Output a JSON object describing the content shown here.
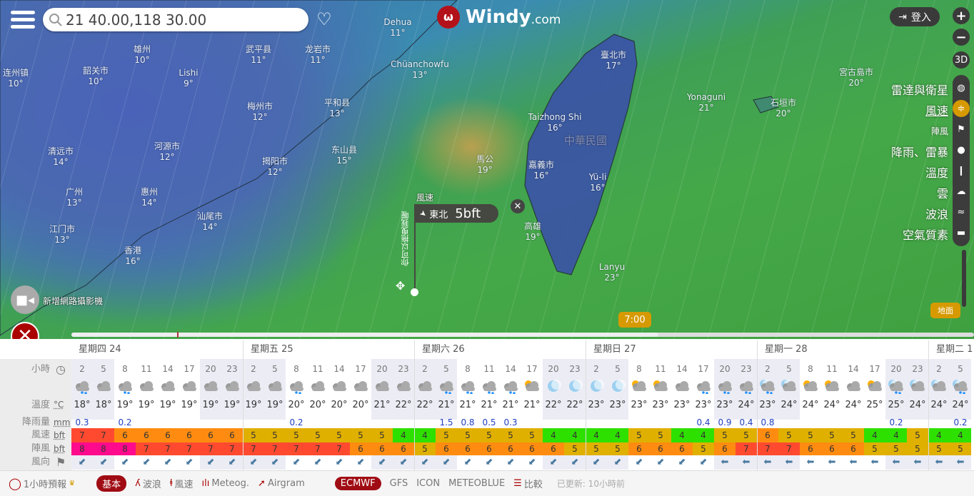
{
  "app": {
    "logo_text": "Windy",
    "logo_suffix": ".com",
    "brand_color": "#b3121b"
  },
  "search": {
    "value": "21 40.00,118 30.00"
  },
  "login_label": "登入",
  "zoom": {
    "plus": "+",
    "minus": "−",
    "three_d": "3D"
  },
  "layers": [
    {
      "label": "雷達與衛星",
      "icon": "globe-icon",
      "glyph": "◍"
    },
    {
      "label": "風速",
      "icon": "wind-icon",
      "glyph": "≑",
      "active": true
    },
    {
      "label": "陣風",
      "icon": "flag-icon",
      "glyph": "⚑"
    },
    {
      "label": "降雨、雷暴",
      "icon": "drop-icon",
      "glyph": "●"
    },
    {
      "label": "溫度",
      "icon": "thermometer-icon",
      "glyph": "❙"
    },
    {
      "label": "雲",
      "icon": "cloud-icon",
      "glyph": "☁"
    },
    {
      "label": "波浪",
      "icon": "waves-icon",
      "glyph": "≈"
    },
    {
      "label": "空氣質素",
      "icon": "car-icon",
      "glyph": "▬"
    }
  ],
  "cities": [
    {
      "name": "连州镇",
      "temp": "10°"
    },
    {
      "name": "韶关市",
      "temp": "10°"
    },
    {
      "name": "雄州",
      "temp": "10°"
    },
    {
      "name": "Lishi",
      "temp": "9°"
    },
    {
      "name": "武平县",
      "temp": "11°"
    },
    {
      "name": "龙岩市",
      "temp": "11°"
    },
    {
      "name": "梅州市",
      "temp": "12°"
    },
    {
      "name": "平和县",
      "temp": "13°"
    },
    {
      "name": "清远市",
      "temp": "14°"
    },
    {
      "name": "河源市",
      "temp": "12°"
    },
    {
      "name": "揭阳市",
      "temp": "12°"
    },
    {
      "name": "东山县",
      "temp": "15°"
    },
    {
      "name": "广州",
      "temp": "13°"
    },
    {
      "name": "惠州",
      "temp": "14°"
    },
    {
      "name": "汕尾市",
      "temp": "14°"
    },
    {
      "name": "江门市",
      "temp": "13°"
    },
    {
      "name": "香港",
      "temp": "16°"
    },
    {
      "name": "Dehua",
      "temp": "11°"
    },
    {
      "name": "Chüanchowfu",
      "temp": "13°"
    },
    {
      "name": "馬公",
      "temp": "19°"
    },
    {
      "name": "臺北市",
      "temp": "17°"
    },
    {
      "name": "Taizhong Shi",
      "temp": "16°"
    },
    {
      "name": "嘉義市",
      "temp": "16°"
    },
    {
      "name": "Yü-li",
      "temp": "16°"
    },
    {
      "name": "高雄",
      "temp": "19°"
    },
    {
      "name": "Lanyu",
      "temp": "23°"
    },
    {
      "name": "Yonaguni",
      "temp": "21°"
    },
    {
      "name": "石垣市",
      "temp": "20°"
    },
    {
      "name": "宮古島市",
      "temp": "20°"
    }
  ],
  "country_label": "中華民國",
  "picker": {
    "title": "風速",
    "direction": "東北",
    "value": "5bft",
    "hint": "你可以拖曳我喔"
  },
  "webcam_label": "新增網路攝影機",
  "timeline": {
    "time": "7:00",
    "progress_percent": 65
  },
  "ground_label": "地面",
  "table": {
    "labels": {
      "hours": "小時",
      "temp": "溫度",
      "temp_unit": "°C",
      "rain": "降雨量",
      "rain_unit": "mm",
      "wind": "風速",
      "wind_unit": "bft",
      "gust": "陣風",
      "gust_unit": "bft",
      "dir": "風向"
    },
    "days": [
      {
        "label": "星期四 24",
        "hours": [
          "2",
          "5",
          "8",
          "11",
          "14",
          "17",
          "20",
          "23"
        ],
        "icons": [
          "cloud-rain",
          "cloud",
          "cloud-rain",
          "cloud",
          "cloud",
          "cloud",
          "cloud",
          "cloud"
        ],
        "temps": [
          "18°",
          "18°",
          "19°",
          "19°",
          "19°",
          "19°",
          "19°",
          "19°"
        ],
        "rain": [
          "0.3",
          "",
          "0.2",
          "",
          "",
          "",
          "",
          ""
        ],
        "wind": [
          7,
          7,
          6,
          6,
          6,
          6,
          6,
          6
        ],
        "gust": [
          8,
          8,
          8,
          7,
          7,
          7,
          7,
          7
        ],
        "dir": [
          "NE",
          "NE",
          "NE",
          "NE",
          "NE",
          "NE",
          "NE",
          "NE"
        ]
      },
      {
        "label": "星期五 25",
        "hours": [
          "2",
          "5",
          "8",
          "11",
          "14",
          "17",
          "20",
          "23"
        ],
        "icons": [
          "cloud",
          "cloud",
          "cloud-rain",
          "cloud",
          "cloud",
          "cloud",
          "cloud",
          "cloud"
        ],
        "temps": [
          "19°",
          "19°",
          "20°",
          "20°",
          "20°",
          "20°",
          "21°",
          "22°"
        ],
        "rain": [
          "",
          "",
          "0.2",
          "",
          "",
          "",
          "",
          ""
        ],
        "wind": [
          5,
          5,
          5,
          5,
          5,
          5,
          5,
          4
        ],
        "gust": [
          7,
          7,
          7,
          7,
          7,
          6,
          6,
          6
        ],
        "dir": [
          "NE",
          "NE",
          "NE",
          "NE",
          "NE",
          "NE",
          "NE",
          "NE"
        ]
      },
      {
        "label": "星期六 26",
        "hours": [
          "2",
          "5",
          "8",
          "11",
          "14",
          "17",
          "20",
          "23"
        ],
        "icons": [
          "cloud",
          "cloud-rain",
          "cloud-rain",
          "cloud-rain",
          "cloud-rain",
          "sun-cloud",
          "moon",
          "moon"
        ],
        "temps": [
          "22°",
          "21°",
          "21°",
          "21°",
          "21°",
          "21°",
          "22°",
          "22°"
        ],
        "rain": [
          "",
          "1.5",
          "0.8",
          "0.5",
          "0.3",
          "",
          "",
          ""
        ],
        "wind": [
          4,
          5,
          5,
          5,
          5,
          5,
          4,
          4
        ],
        "gust": [
          5,
          6,
          6,
          6,
          6,
          6,
          6,
          5
        ],
        "dir": [
          "NE",
          "NE",
          "NE",
          "NE",
          "NE",
          "NE",
          "NE",
          "NE"
        ]
      },
      {
        "label": "星期日 27",
        "hours": [
          "2",
          "5",
          "8",
          "11",
          "14",
          "17",
          "20",
          "23"
        ],
        "icons": [
          "moon",
          "moon",
          "sun-cloud",
          "sun-cloud",
          "cloud",
          "cloud-rain",
          "cloud-rain",
          "cloud-rain"
        ],
        "temps": [
          "23°",
          "23°",
          "23°",
          "23°",
          "23°",
          "23°",
          "23°",
          "24°"
        ],
        "rain": [
          "",
          "",
          "",
          "",
          "",
          "0.4",
          "0.9",
          "0.4"
        ],
        "wind": [
          4,
          4,
          5,
          5,
          4,
          4,
          5,
          5
        ],
        "gust": [
          5,
          5,
          6,
          6,
          6,
          5,
          6,
          7
        ],
        "dir": [
          "NE",
          "NE",
          "NE",
          "NE",
          "NE",
          "NE",
          "E",
          "E"
        ]
      },
      {
        "label": "星期一 28",
        "hours": [
          "2",
          "5",
          "8",
          "11",
          "14",
          "17",
          "20",
          "23"
        ],
        "icons": [
          "moon-cloud-rain",
          "moon-cloud",
          "sun-cloud",
          "sun-cloud",
          "cloud",
          "sun-cloud",
          "moon-cloud-rain",
          "moon-cloud"
        ],
        "temps": [
          "23°",
          "24°",
          "24°",
          "24°",
          "24°",
          "25°",
          "25°",
          "24°"
        ],
        "rain": [
          "0.8",
          "",
          "",
          "",
          "",
          "",
          "0.2",
          ""
        ],
        "wind": [
          6,
          5,
          5,
          5,
          5,
          4,
          4,
          5
        ],
        "gust": [
          7,
          7,
          6,
          6,
          6,
          5,
          5,
          5
        ],
        "dir": [
          "E",
          "E",
          "E",
          "E",
          "E",
          "E",
          "E",
          "E"
        ]
      },
      {
        "label": "星期二 1",
        "hours": [
          "2",
          "5"
        ],
        "icons": [
          "moon-cloud",
          "moon-cloud-rain"
        ],
        "temps": [
          "24°",
          "24°"
        ],
        "rain": [
          "",
          "0.2"
        ],
        "wind": [
          4,
          4
        ],
        "gust": [
          5,
          5
        ],
        "dir": [
          "E",
          "E"
        ]
      }
    ],
    "bft_colors": {
      "4": "#2ee000",
      "5": "#e0b000",
      "6": "#ff8c10",
      "7": "#ff4a30",
      "8": "#ff0a8c"
    }
  },
  "bottom": {
    "hourly_label": "1小時預報",
    "tabs": [
      "基本",
      "波浪",
      "風速",
      "Meteog.",
      "Airgram"
    ],
    "models": [
      "ECMWF",
      "GFS",
      "ICON",
      "METEOBLUE"
    ],
    "compare": "比較",
    "updated": "已更新: 10小時前"
  }
}
